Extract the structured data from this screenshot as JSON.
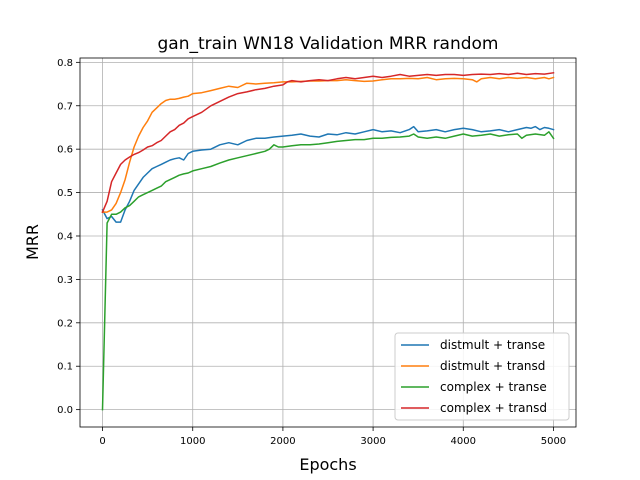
{
  "chart_data": {
    "type": "line",
    "title": "gan_train WN18 Validation MRR random",
    "xlabel": "Epochs",
    "ylabel": "MRR",
    "xlim": [
      -250,
      5250
    ],
    "ylim": [
      -0.04,
      0.81
    ],
    "xticks": [
      0,
      1000,
      2000,
      3000,
      4000,
      5000
    ],
    "xtick_labels": [
      "0",
      "1000",
      "2000",
      "3000",
      "4000",
      "5000"
    ],
    "yticks": [
      0.0,
      0.1,
      0.2,
      0.3,
      0.4,
      0.5,
      0.6,
      0.7,
      0.8
    ],
    "ytick_labels": [
      "0.0",
      "0.1",
      "0.2",
      "0.3",
      "0.4",
      "0.5",
      "0.6",
      "0.7",
      "0.8"
    ],
    "grid": true,
    "legend_position": "lower-right",
    "series": [
      {
        "name": "distmult + transe",
        "color": "#1f77b4",
        "points": [
          [
            0,
            0.46
          ],
          [
            50,
            0.44
          ],
          [
            100,
            0.445
          ],
          [
            150,
            0.432
          ],
          [
            200,
            0.432
          ],
          [
            250,
            0.46
          ],
          [
            300,
            0.48
          ],
          [
            350,
            0.505
          ],
          [
            400,
            0.52
          ],
          [
            450,
            0.535
          ],
          [
            500,
            0.545
          ],
          [
            550,
            0.555
          ],
          [
            600,
            0.56
          ],
          [
            650,
            0.565
          ],
          [
            700,
            0.57
          ],
          [
            750,
            0.575
          ],
          [
            800,
            0.578
          ],
          [
            850,
            0.58
          ],
          [
            900,
            0.575
          ],
          [
            950,
            0.59
          ],
          [
            1000,
            0.595
          ],
          [
            1100,
            0.598
          ],
          [
            1200,
            0.6
          ],
          [
            1300,
            0.61
          ],
          [
            1400,
            0.615
          ],
          [
            1500,
            0.61
          ],
          [
            1600,
            0.62
          ],
          [
            1700,
            0.625
          ],
          [
            1800,
            0.625
          ],
          [
            1900,
            0.628
          ],
          [
            2000,
            0.63
          ],
          [
            2100,
            0.632
          ],
          [
            2200,
            0.635
          ],
          [
            2300,
            0.63
          ],
          [
            2400,
            0.628
          ],
          [
            2500,
            0.635
          ],
          [
            2600,
            0.633
          ],
          [
            2700,
            0.638
          ],
          [
            2800,
            0.635
          ],
          [
            2900,
            0.64
          ],
          [
            3000,
            0.645
          ],
          [
            3100,
            0.64
          ],
          [
            3200,
            0.642
          ],
          [
            3300,
            0.638
          ],
          [
            3400,
            0.645
          ],
          [
            3450,
            0.652
          ],
          [
            3500,
            0.64
          ],
          [
            3600,
            0.642
          ],
          [
            3700,
            0.645
          ],
          [
            3800,
            0.64
          ],
          [
            3900,
            0.645
          ],
          [
            4000,
            0.648
          ],
          [
            4100,
            0.645
          ],
          [
            4200,
            0.64
          ],
          [
            4300,
            0.642
          ],
          [
            4400,
            0.645
          ],
          [
            4500,
            0.64
          ],
          [
            4600,
            0.645
          ],
          [
            4700,
            0.65
          ],
          [
            4750,
            0.648
          ],
          [
            4800,
            0.652
          ],
          [
            4850,
            0.645
          ],
          [
            4900,
            0.65
          ],
          [
            4950,
            0.648
          ],
          [
            5000,
            0.645
          ]
        ]
      },
      {
        "name": "distmult + transd",
        "color": "#ff7f0e",
        "points": [
          [
            0,
            0.455
          ],
          [
            50,
            0.455
          ],
          [
            100,
            0.46
          ],
          [
            150,
            0.475
          ],
          [
            200,
            0.5
          ],
          [
            250,
            0.53
          ],
          [
            300,
            0.57
          ],
          [
            350,
            0.605
          ],
          [
            400,
            0.63
          ],
          [
            450,
            0.65
          ],
          [
            500,
            0.665
          ],
          [
            550,
            0.685
          ],
          [
            600,
            0.695
          ],
          [
            650,
            0.705
          ],
          [
            700,
            0.712
          ],
          [
            750,
            0.715
          ],
          [
            800,
            0.715
          ],
          [
            850,
            0.717
          ],
          [
            900,
            0.72
          ],
          [
            950,
            0.722
          ],
          [
            1000,
            0.728
          ],
          [
            1100,
            0.73
          ],
          [
            1200,
            0.735
          ],
          [
            1300,
            0.74
          ],
          [
            1400,
            0.745
          ],
          [
            1500,
            0.742
          ],
          [
            1600,
            0.752
          ],
          [
            1700,
            0.75
          ],
          [
            1800,
            0.752
          ],
          [
            1900,
            0.753
          ],
          [
            2000,
            0.755
          ],
          [
            2100,
            0.755
          ],
          [
            2200,
            0.756
          ],
          [
            2300,
            0.757
          ],
          [
            2400,
            0.757
          ],
          [
            2500,
            0.758
          ],
          [
            2600,
            0.758
          ],
          [
            2700,
            0.76
          ],
          [
            2800,
            0.758
          ],
          [
            2900,
            0.756
          ],
          [
            3000,
            0.757
          ],
          [
            3100,
            0.76
          ],
          [
            3200,
            0.762
          ],
          [
            3300,
            0.762
          ],
          [
            3400,
            0.763
          ],
          [
            3500,
            0.762
          ],
          [
            3600,
            0.765
          ],
          [
            3700,
            0.76
          ],
          [
            3800,
            0.762
          ],
          [
            3900,
            0.763
          ],
          [
            4000,
            0.762
          ],
          [
            4100,
            0.76
          ],
          [
            4150,
            0.755
          ],
          [
            4200,
            0.762
          ],
          [
            4300,
            0.765
          ],
          [
            4400,
            0.762
          ],
          [
            4500,
            0.765
          ],
          [
            4600,
            0.763
          ],
          [
            4700,
            0.765
          ],
          [
            4800,
            0.762
          ],
          [
            4900,
            0.765
          ],
          [
            4950,
            0.762
          ],
          [
            5000,
            0.765
          ]
        ]
      },
      {
        "name": "complex + transe",
        "color": "#2ca02c",
        "points": [
          [
            0,
            0.0
          ],
          [
            50,
            0.43
          ],
          [
            100,
            0.45
          ],
          [
            150,
            0.45
          ],
          [
            200,
            0.455
          ],
          [
            250,
            0.465
          ],
          [
            300,
            0.47
          ],
          [
            350,
            0.48
          ],
          [
            400,
            0.49
          ],
          [
            450,
            0.495
          ],
          [
            500,
            0.5
          ],
          [
            550,
            0.505
          ],
          [
            600,
            0.51
          ],
          [
            650,
            0.515
          ],
          [
            700,
            0.525
          ],
          [
            750,
            0.53
          ],
          [
            800,
            0.535
          ],
          [
            850,
            0.54
          ],
          [
            900,
            0.543
          ],
          [
            950,
            0.545
          ],
          [
            1000,
            0.55
          ],
          [
            1100,
            0.555
          ],
          [
            1200,
            0.56
          ],
          [
            1300,
            0.568
          ],
          [
            1400,
            0.575
          ],
          [
            1500,
            0.58
          ],
          [
            1600,
            0.585
          ],
          [
            1700,
            0.59
          ],
          [
            1800,
            0.595
          ],
          [
            1850,
            0.6
          ],
          [
            1900,
            0.61
          ],
          [
            1950,
            0.605
          ],
          [
            2000,
            0.605
          ],
          [
            2100,
            0.608
          ],
          [
            2200,
            0.61
          ],
          [
            2300,
            0.61
          ],
          [
            2400,
            0.612
          ],
          [
            2500,
            0.615
          ],
          [
            2600,
            0.618
          ],
          [
            2700,
            0.62
          ],
          [
            2800,
            0.622
          ],
          [
            2900,
            0.622
          ],
          [
            3000,
            0.625
          ],
          [
            3100,
            0.625
          ],
          [
            3200,
            0.627
          ],
          [
            3300,
            0.628
          ],
          [
            3400,
            0.63
          ],
          [
            3450,
            0.635
          ],
          [
            3500,
            0.628
          ],
          [
            3600,
            0.625
          ],
          [
            3700,
            0.628
          ],
          [
            3800,
            0.625
          ],
          [
            3900,
            0.63
          ],
          [
            4000,
            0.635
          ],
          [
            4100,
            0.63
          ],
          [
            4200,
            0.632
          ],
          [
            4300,
            0.635
          ],
          [
            4400,
            0.63
          ],
          [
            4500,
            0.633
          ],
          [
            4600,
            0.635
          ],
          [
            4650,
            0.625
          ],
          [
            4700,
            0.632
          ],
          [
            4800,
            0.635
          ],
          [
            4900,
            0.632
          ],
          [
            4950,
            0.64
          ],
          [
            5000,
            0.625
          ]
        ]
      },
      {
        "name": "complex + transd",
        "color": "#d62728",
        "points": [
          [
            0,
            0.455
          ],
          [
            50,
            0.48
          ],
          [
            100,
            0.525
          ],
          [
            150,
            0.545
          ],
          [
            200,
            0.565
          ],
          [
            250,
            0.575
          ],
          [
            300,
            0.582
          ],
          [
            350,
            0.588
          ],
          [
            400,
            0.592
          ],
          [
            450,
            0.598
          ],
          [
            500,
            0.605
          ],
          [
            550,
            0.608
          ],
          [
            600,
            0.615
          ],
          [
            650,
            0.62
          ],
          [
            700,
            0.63
          ],
          [
            750,
            0.64
          ],
          [
            800,
            0.645
          ],
          [
            850,
            0.655
          ],
          [
            900,
            0.66
          ],
          [
            950,
            0.67
          ],
          [
            1000,
            0.675
          ],
          [
            1100,
            0.685
          ],
          [
            1200,
            0.7
          ],
          [
            1300,
            0.71
          ],
          [
            1400,
            0.72
          ],
          [
            1500,
            0.728
          ],
          [
            1600,
            0.732
          ],
          [
            1700,
            0.737
          ],
          [
            1800,
            0.74
          ],
          [
            1900,
            0.745
          ],
          [
            2000,
            0.748
          ],
          [
            2050,
            0.755
          ],
          [
            2100,
            0.758
          ],
          [
            2200,
            0.755
          ],
          [
            2300,
            0.758
          ],
          [
            2400,
            0.76
          ],
          [
            2500,
            0.758
          ],
          [
            2600,
            0.762
          ],
          [
            2700,
            0.765
          ],
          [
            2800,
            0.762
          ],
          [
            2900,
            0.765
          ],
          [
            3000,
            0.768
          ],
          [
            3100,
            0.765
          ],
          [
            3200,
            0.768
          ],
          [
            3300,
            0.772
          ],
          [
            3400,
            0.768
          ],
          [
            3500,
            0.77
          ],
          [
            3600,
            0.772
          ],
          [
            3700,
            0.77
          ],
          [
            3800,
            0.772
          ],
          [
            3900,
            0.772
          ],
          [
            4000,
            0.77
          ],
          [
            4100,
            0.772
          ],
          [
            4200,
            0.773
          ],
          [
            4300,
            0.772
          ],
          [
            4400,
            0.774
          ],
          [
            4500,
            0.772
          ],
          [
            4600,
            0.775
          ],
          [
            4700,
            0.772
          ],
          [
            4800,
            0.774
          ],
          [
            4900,
            0.773
          ],
          [
            5000,
            0.776
          ]
        ]
      }
    ]
  }
}
